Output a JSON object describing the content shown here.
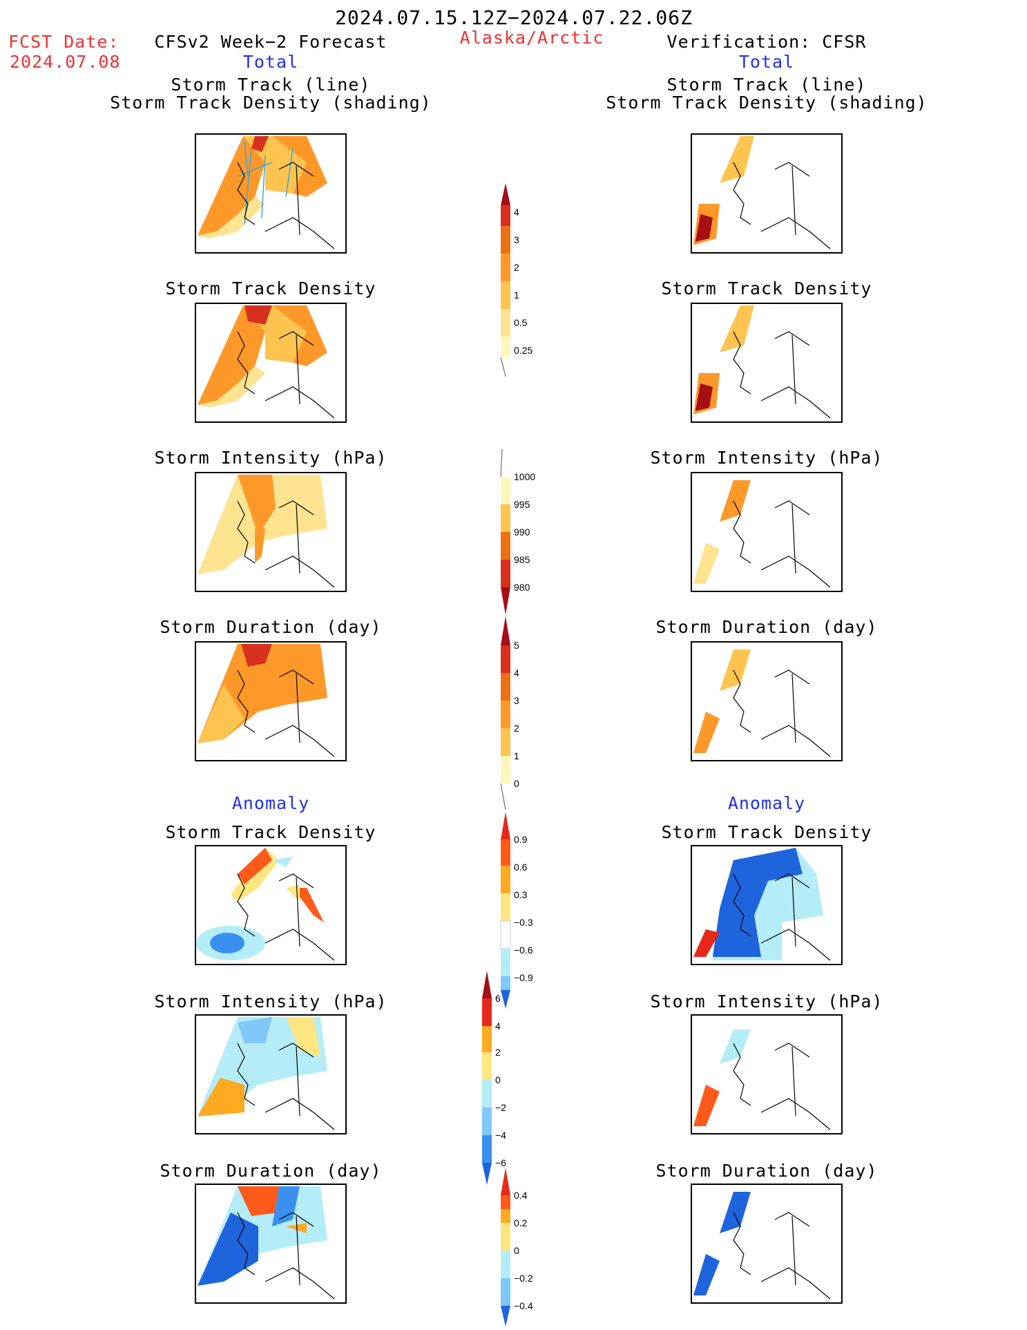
{
  "header": {
    "period": "2024.07.15.12Z−2024.07.22.06Z",
    "fcst_label": "FCST Date:",
    "fcst_date": "2024.07.08",
    "left_title": "CFSv2 Week−2 Forecast",
    "region": "Alaska/Arctic",
    "right_title": "Verification: CFSR",
    "total_left": "Total",
    "total_right": "Total"
  },
  "panel_titles": {
    "track_line": "Storm Track (line)",
    "track_shading": "Storm Track Density (shading)",
    "density": "Storm Track Density",
    "intensity": "Storm Intensity (hPa)",
    "duration": "Storm Duration (day)"
  },
  "anomaly_left": "Anomaly",
  "anomaly_right": "Anomaly",
  "colorbars": {
    "density_total": [
      "4",
      "3",
      "2",
      "1",
      "0.5",
      "0.25"
    ],
    "intensity_total": [
      "1000",
      "995",
      "990",
      "985",
      "980"
    ],
    "duration_total": [
      "5",
      "4",
      "3",
      "2",
      "1",
      "0"
    ],
    "density_anom": [
      "0.9",
      "0.6",
      "0.3",
      "−0.3",
      "−0.6",
      "−0.9"
    ],
    "intensity_anom": [
      "6",
      "4",
      "2",
      "0",
      "−2",
      "−4",
      "−6"
    ],
    "duration_anom": [
      "0.4",
      "0.2",
      "0",
      "−0.2",
      "−0.4"
    ]
  },
  "colors": {
    "title_red": "#f03030",
    "title_blue": "#1f2ff0",
    "warm_scale": [
      "#fff7bc",
      "#fee391",
      "#fec44f",
      "#fe9929",
      "#ec7014",
      "#cc4c02",
      "#d7301f",
      "#a50f15"
    ],
    "anom_pos": [
      "#ffe680",
      "#ffaa20",
      "#ff5a1a",
      "#e8281a"
    ],
    "anom_neg": [
      "#b4ecf8",
      "#7fc8f8",
      "#3a90ee",
      "#1e64dc"
    ]
  }
}
